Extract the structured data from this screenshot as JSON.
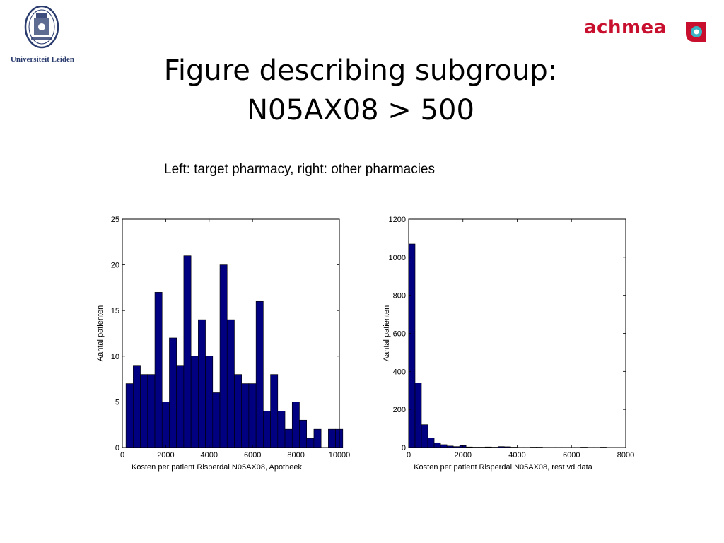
{
  "header": {
    "leiden_logo_text": "Universiteit Leiden",
    "achmea_logo_text": "achmea",
    "title_line1": "Figure describing subgroup:",
    "title_line2": "N05AX08 > 500"
  },
  "caption": "Left: target pharmacy, right: other pharmacies",
  "colors": {
    "bar_fill": "#000080",
    "bar_edge": "#000000",
    "achmea_red": "#c8102e",
    "leiden_blue": "#2a3b6e"
  },
  "chart_data": [
    {
      "type": "bar",
      "title": "",
      "xlabel": "Kosten per patient Risperdal N05AX08, Apotheek",
      "ylabel": "Aantal patienten",
      "xlim": [
        0,
        10000
      ],
      "ylim": [
        0,
        25
      ],
      "xticks": [
        0,
        2000,
        4000,
        6000,
        8000,
        10000
      ],
      "xtick_labels": [
        "0",
        "2000",
        "4000",
        "6000",
        "8000",
        "10000"
      ],
      "yticks": [
        0,
        5,
        10,
        15,
        20,
        25
      ],
      "ytick_labels": [
        "0",
        "5",
        "10",
        "15",
        "20",
        "25"
      ],
      "bin_start": 167,
      "bin_width": 333,
      "values": [
        7,
        9,
        8,
        8,
        17,
        5,
        12,
        9,
        21,
        10,
        14,
        10,
        6,
        20,
        14,
        8,
        7,
        7,
        16,
        4,
        8,
        4,
        2,
        5,
        3,
        1,
        2,
        0,
        2,
        2
      ],
      "grid": false
    },
    {
      "type": "bar",
      "title": "",
      "xlabel": "Kosten per patient Risperdal N05AX08, rest vd data",
      "ylabel": "Aantal patienten",
      "xlim": [
        0,
        8000
      ],
      "ylim": [
        0,
        1200
      ],
      "xticks": [
        0,
        2000,
        4000,
        6000,
        8000
      ],
      "xtick_labels": [
        "0",
        "2000",
        "4000",
        "6000",
        "8000"
      ],
      "yticks": [
        0,
        200,
        400,
        600,
        800,
        1000,
        1200
      ],
      "ytick_labels": [
        "0",
        "200",
        "400",
        "600",
        "800",
        "1000",
        "1200"
      ],
      "bin_start": 0,
      "bin_width": 235,
      "values": [
        1070,
        340,
        120,
        50,
        25,
        15,
        8,
        5,
        10,
        3,
        2,
        2,
        3,
        2,
        5,
        4,
        2,
        1,
        1,
        2,
        2,
        1,
        1,
        1,
        1,
        1,
        1,
        2,
        1,
        1,
        2
      ],
      "grid": false
    }
  ]
}
